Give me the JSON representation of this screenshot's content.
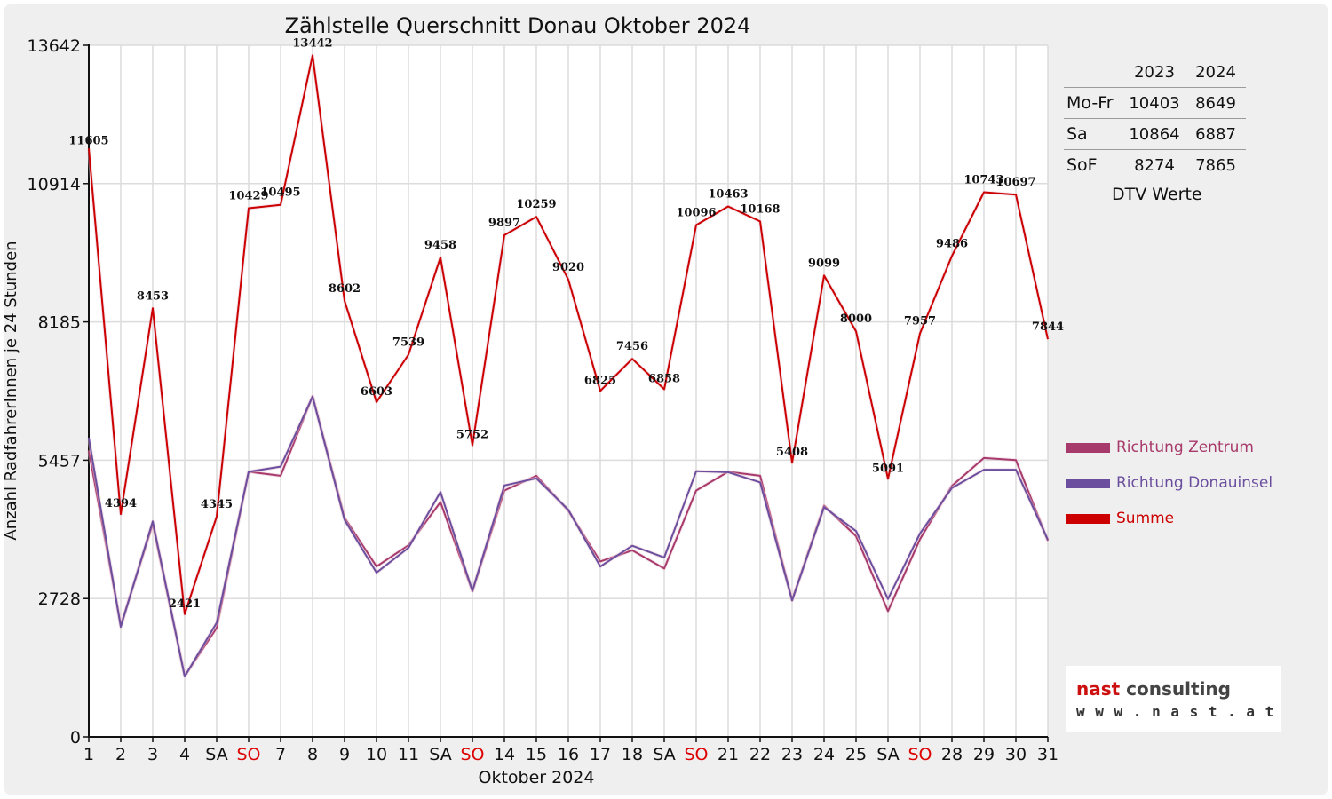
{
  "chart_data": {
    "type": "line",
    "title": "Zählstelle Querschnitt Donau Oktober 2024",
    "xlabel": "Oktober 2024",
    "ylabel": "Anzahl RadfahrerInnen je 24 Stunden",
    "ylim": [
      0,
      13642
    ],
    "yticks": [
      "0",
      "2728",
      "5457",
      "8185",
      "10914",
      "13642"
    ],
    "categories": [
      "1",
      "2",
      "3",
      "4",
      "SA",
      "SO",
      "7",
      "8",
      "9",
      "10",
      "11",
      "SA",
      "SO",
      "14",
      "15",
      "16",
      "17",
      "18",
      "SA",
      "SO",
      "21",
      "22",
      "23",
      "24",
      "25",
      "SA",
      "SO",
      "28",
      "29",
      "30",
      "31"
    ],
    "category_colors": [
      "#111",
      "#111",
      "#111",
      "#111",
      "#111",
      "#dd0000",
      "#111",
      "#111",
      "#111",
      "#111",
      "#111",
      "#111",
      "#dd0000",
      "#111",
      "#111",
      "#111",
      "#111",
      "#111",
      "#111",
      "#dd0000",
      "#111",
      "#111",
      "#111",
      "#111",
      "#111",
      "#111",
      "#dd0000",
      "#111",
      "#111",
      "#111",
      "#111"
    ],
    "grid": true,
    "series": [
      {
        "name": "Richtung Zentrum",
        "color": "#a83a6b",
        "values": [
          5650,
          2200,
          4200,
          1200,
          2150,
          5230,
          5150,
          6720,
          4320,
          3360,
          3780,
          4630,
          2870,
          4860,
          5150,
          4460,
          3460,
          3680,
          3320,
          4860,
          5230,
          5150,
          2700,
          4560,
          3960,
          2480,
          3900,
          4950,
          5500,
          5460,
          3870
        ]
      },
      {
        "name": "Richtung Donauinsel",
        "color": "#6b4f9e",
        "values": [
          5900,
          2170,
          4250,
          1190,
          2250,
          5230,
          5330,
          6710,
          4280,
          3240,
          3730,
          4830,
          2880,
          4960,
          5100,
          4480,
          3360,
          3770,
          3540,
          5240,
          5220,
          5020,
          2690,
          4530,
          4060,
          2720,
          4010,
          4910,
          5270,
          5270,
          3890
        ]
      },
      {
        "name": "Summe",
        "color": "#cc0000",
        "values": [
          11605,
          4394,
          8453,
          2421,
          4345,
          10429,
          10495,
          13442,
          8602,
          6603,
          7539,
          9458,
          5752,
          9897,
          10259,
          9020,
          6825,
          7456,
          6858,
          10096,
          10463,
          10168,
          5408,
          9099,
          8000,
          5091,
          7957,
          9486,
          10743,
          10697,
          7844
        ],
        "labels": [
          "11605",
          "4394",
          "8453",
          "2421",
          "4345",
          "10429",
          "10495",
          "13442",
          "8602",
          "6603",
          "7539",
          "9458",
          "5752",
          "9897",
          "10259",
          "9020",
          "6825",
          "7456",
          "6858",
          "10096",
          "10463",
          "10168",
          "5408",
          "9099",
          "8000",
          "5091",
          "7957",
          "9486",
          "10743",
          "10697",
          "7844"
        ]
      }
    ],
    "legend": {
      "placement": "right",
      "items": [
        {
          "label": "Richtung Zentrum",
          "color": "#a83a6b"
        },
        {
          "label": "Richtung Donauinsel",
          "color": "#6b4f9e"
        },
        {
          "label": "Summe",
          "color": "#cc0000"
        }
      ]
    }
  },
  "dtv_table": {
    "headers": [
      "",
      "2023",
      "2024"
    ],
    "rows": [
      {
        "label": "Mo-Fr",
        "v2023": "10403",
        "v2024": "8649"
      },
      {
        "label": "Sa",
        "v2023": "10864",
        "v2024": "6887"
      },
      {
        "label": "SoF",
        "v2023": "8274",
        "v2024": "7865"
      }
    ],
    "caption": "DTV Werte"
  },
  "logo": {
    "brand": "nast",
    "word": "consulting",
    "url": "w w w . n a s t . a t"
  }
}
